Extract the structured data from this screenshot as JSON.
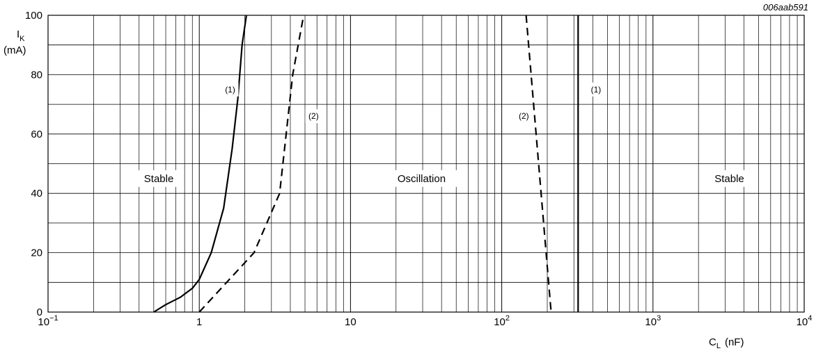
{
  "chart_data": {
    "type": "line",
    "figure_id": "006aab591",
    "x_axis": {
      "scale": "log",
      "range": [
        0.1,
        10000
      ],
      "label_main": "C",
      "label_sub": "L",
      "label_unit": "(nF)",
      "ticks": [
        {
          "value": 0.1,
          "base": "10",
          "exp": "−1"
        },
        {
          "value": 1,
          "base": "1",
          "exp": ""
        },
        {
          "value": 10,
          "base": "10",
          "exp": ""
        },
        {
          "value": 100,
          "base": "10",
          "exp": "2"
        },
        {
          "value": 1000,
          "base": "10",
          "exp": "3"
        },
        {
          "value": 10000,
          "base": "10",
          "exp": "4"
        }
      ]
    },
    "y_axis": {
      "scale": "linear",
      "range": [
        0,
        100
      ],
      "label_main": "I",
      "label_sub": "K",
      "label_unit": "(mA)",
      "ticks": [
        0,
        20,
        40,
        60,
        80,
        100
      ],
      "minor_step": 10
    },
    "grid": true,
    "series": [
      {
        "label": "(1)",
        "style": "solid",
        "points": [
          [
            0.5,
            0
          ],
          [
            0.6,
            2.5
          ],
          [
            0.75,
            5
          ],
          [
            0.9,
            8
          ],
          [
            1.0,
            11
          ],
          [
            1.2,
            20
          ],
          [
            1.45,
            35
          ],
          [
            1.65,
            55
          ],
          [
            1.8,
            72
          ],
          [
            1.92,
            90
          ],
          [
            2.05,
            100
          ]
        ]
      },
      {
        "label": "(2)",
        "style": "dashed",
        "points": [
          [
            1.0,
            0
          ],
          [
            2.3,
            20
          ],
          [
            3.4,
            40
          ],
          [
            4.15,
            80
          ],
          [
            4.9,
            100
          ]
        ]
      },
      {
        "label": "(2)",
        "style": "dashed",
        "points": [
          [
            145,
            100
          ],
          [
            212,
            0
          ]
        ]
      },
      {
        "label": "(1)",
        "style": "solid",
        "points": [
          [
            320,
            0
          ],
          [
            320,
            100
          ]
        ]
      }
    ],
    "annotations": [
      {
        "text": "(1)",
        "x": 1.6,
        "y": 75
      },
      {
        "text": "(2)",
        "x": 5.7,
        "y": 66
      },
      {
        "text": "(2)",
        "x": 140,
        "y": 66
      },
      {
        "text": "(1)",
        "x": 420,
        "y": 75
      }
    ],
    "regions": [
      {
        "text": "Stable",
        "x": 0.54,
        "y": 45
      },
      {
        "text": "Oscillation",
        "x": 29.5,
        "y": 45
      },
      {
        "text": "Stable",
        "x": 3200,
        "y": 45
      }
    ]
  }
}
